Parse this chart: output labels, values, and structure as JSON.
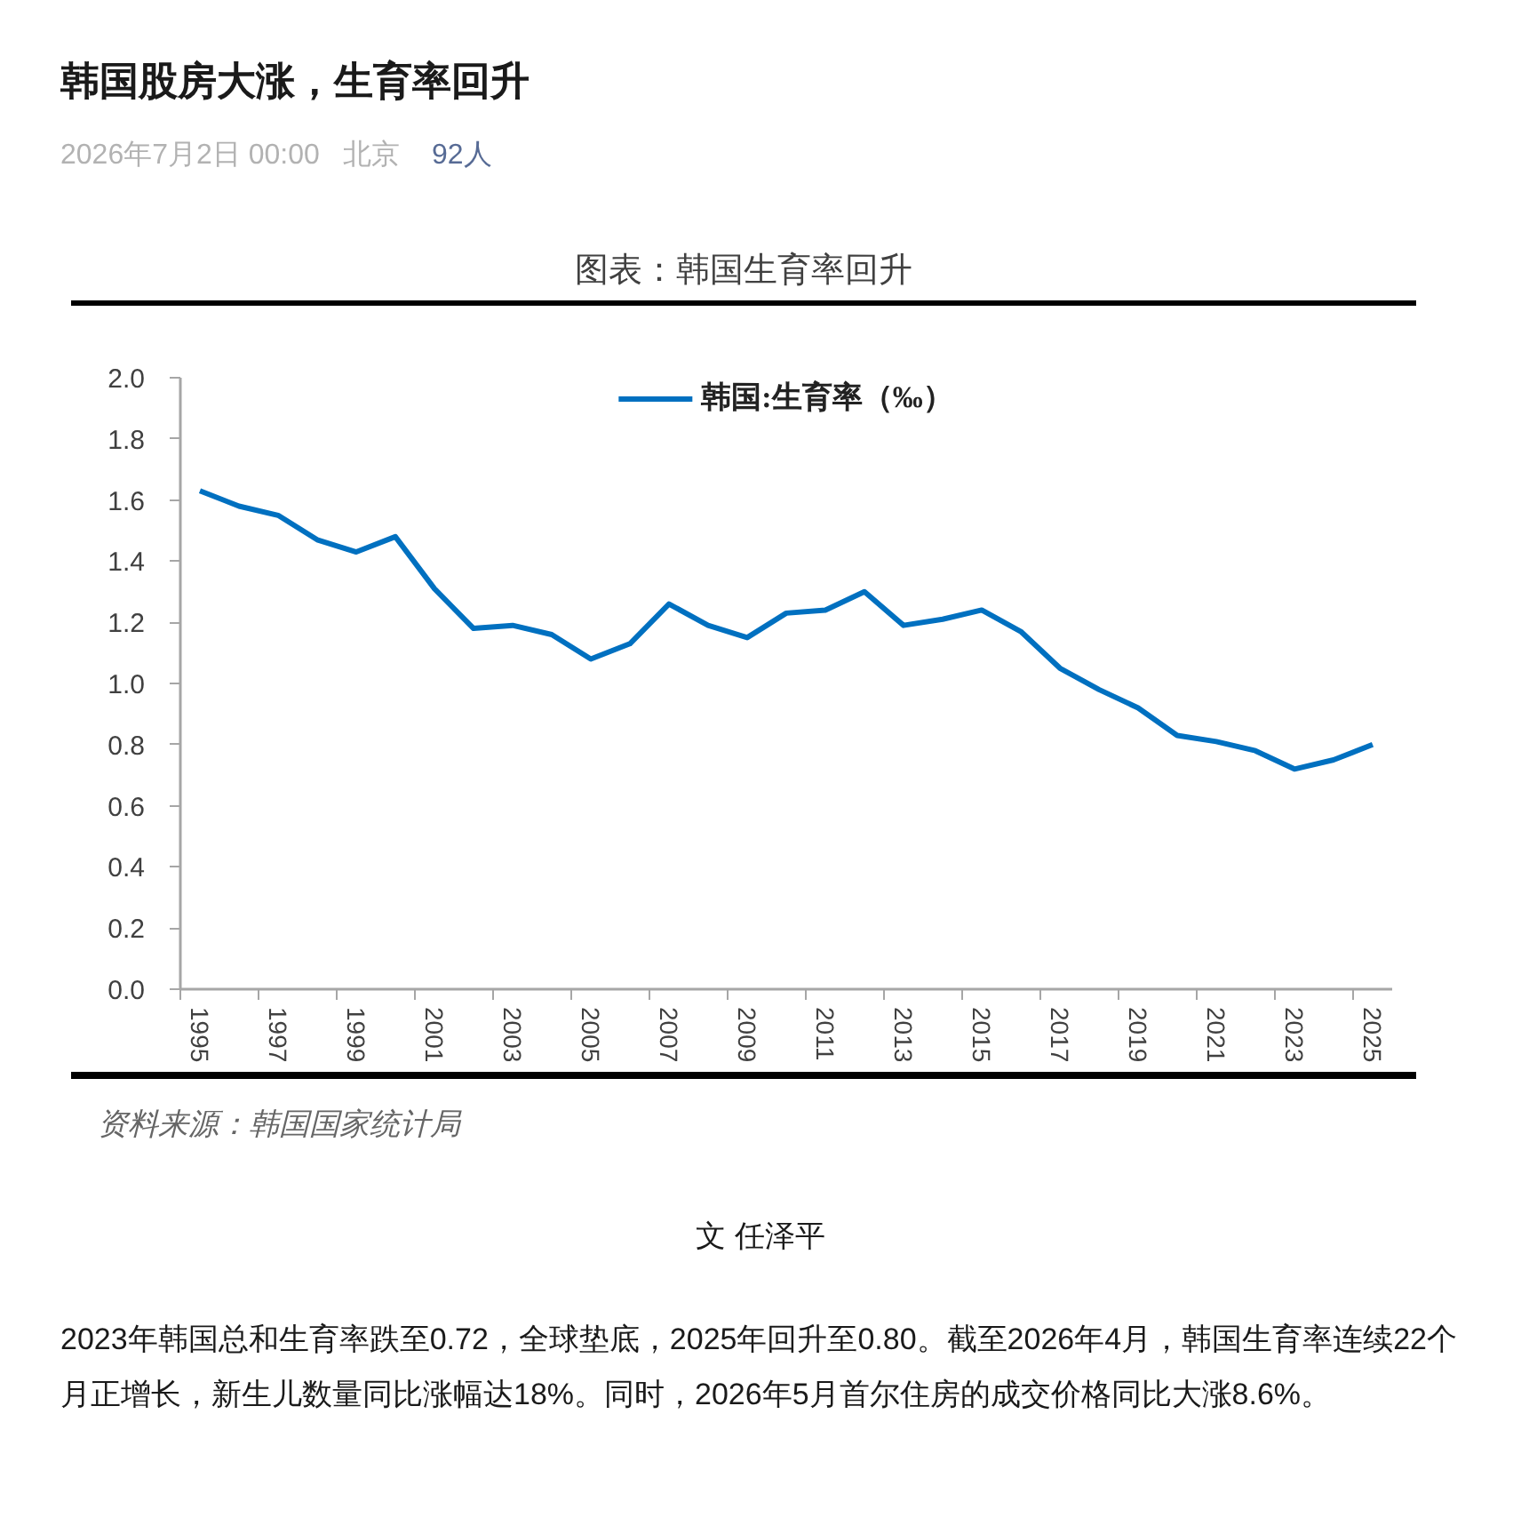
{
  "chart_data": {
    "type": "line",
    "title": "图表：韩国生育率回升",
    "categories": [
      "1995",
      null,
      "1997",
      null,
      "1999",
      null,
      "2001",
      null,
      "2003",
      null,
      "2005",
      null,
      "2007",
      null,
      "2009",
      null,
      "2011",
      null,
      "2013",
      null,
      "2015",
      null,
      "2017",
      null,
      "2019",
      null,
      "2021",
      null,
      "2023",
      null,
      "2025"
    ],
    "series": [
      {
        "name": "韩国:生育率（‰）",
        "color": "#0070c0",
        "values": [
          1.63,
          1.58,
          1.55,
          1.47,
          1.43,
          1.48,
          1.31,
          1.18,
          1.19,
          1.16,
          1.08,
          1.13,
          1.26,
          1.19,
          1.15,
          1.23,
          1.24,
          1.3,
          1.19,
          1.21,
          1.24,
          1.17,
          1.05,
          0.98,
          0.92,
          0.83,
          0.81,
          0.78,
          0.72,
          0.75,
          0.8
        ]
      }
    ],
    "ylim": [
      0,
      2
    ],
    "yticks": [
      {
        "value": 0,
        "label": "0.0"
      },
      0.2,
      0.4,
      0.6,
      0.8,
      {
        "value": 1,
        "label": "1.0"
      },
      1.2,
      1.4,
      1.6,
      1.8,
      {
        "value": 2,
        "label": "2.0"
      }
    ],
    "legend": "top",
    "grid": false,
    "annotations": [
      "韩国股房大涨，生育率回升",
      "2026年7月2日 00:00",
      "北京",
      "92人",
      "资料来源：韩国国家统计局",
      "文 任泽平",
      "2023年韩国总和生育率跌至0.72，全球垫底，2025年回升至0.80。截至2026年4月，韩国生育率连续22个月正增长，新生儿数量同比涨幅达18%。同时，2026年5月首尔住房的成交价格同比大涨8.6%。"
    ]
  }
}
